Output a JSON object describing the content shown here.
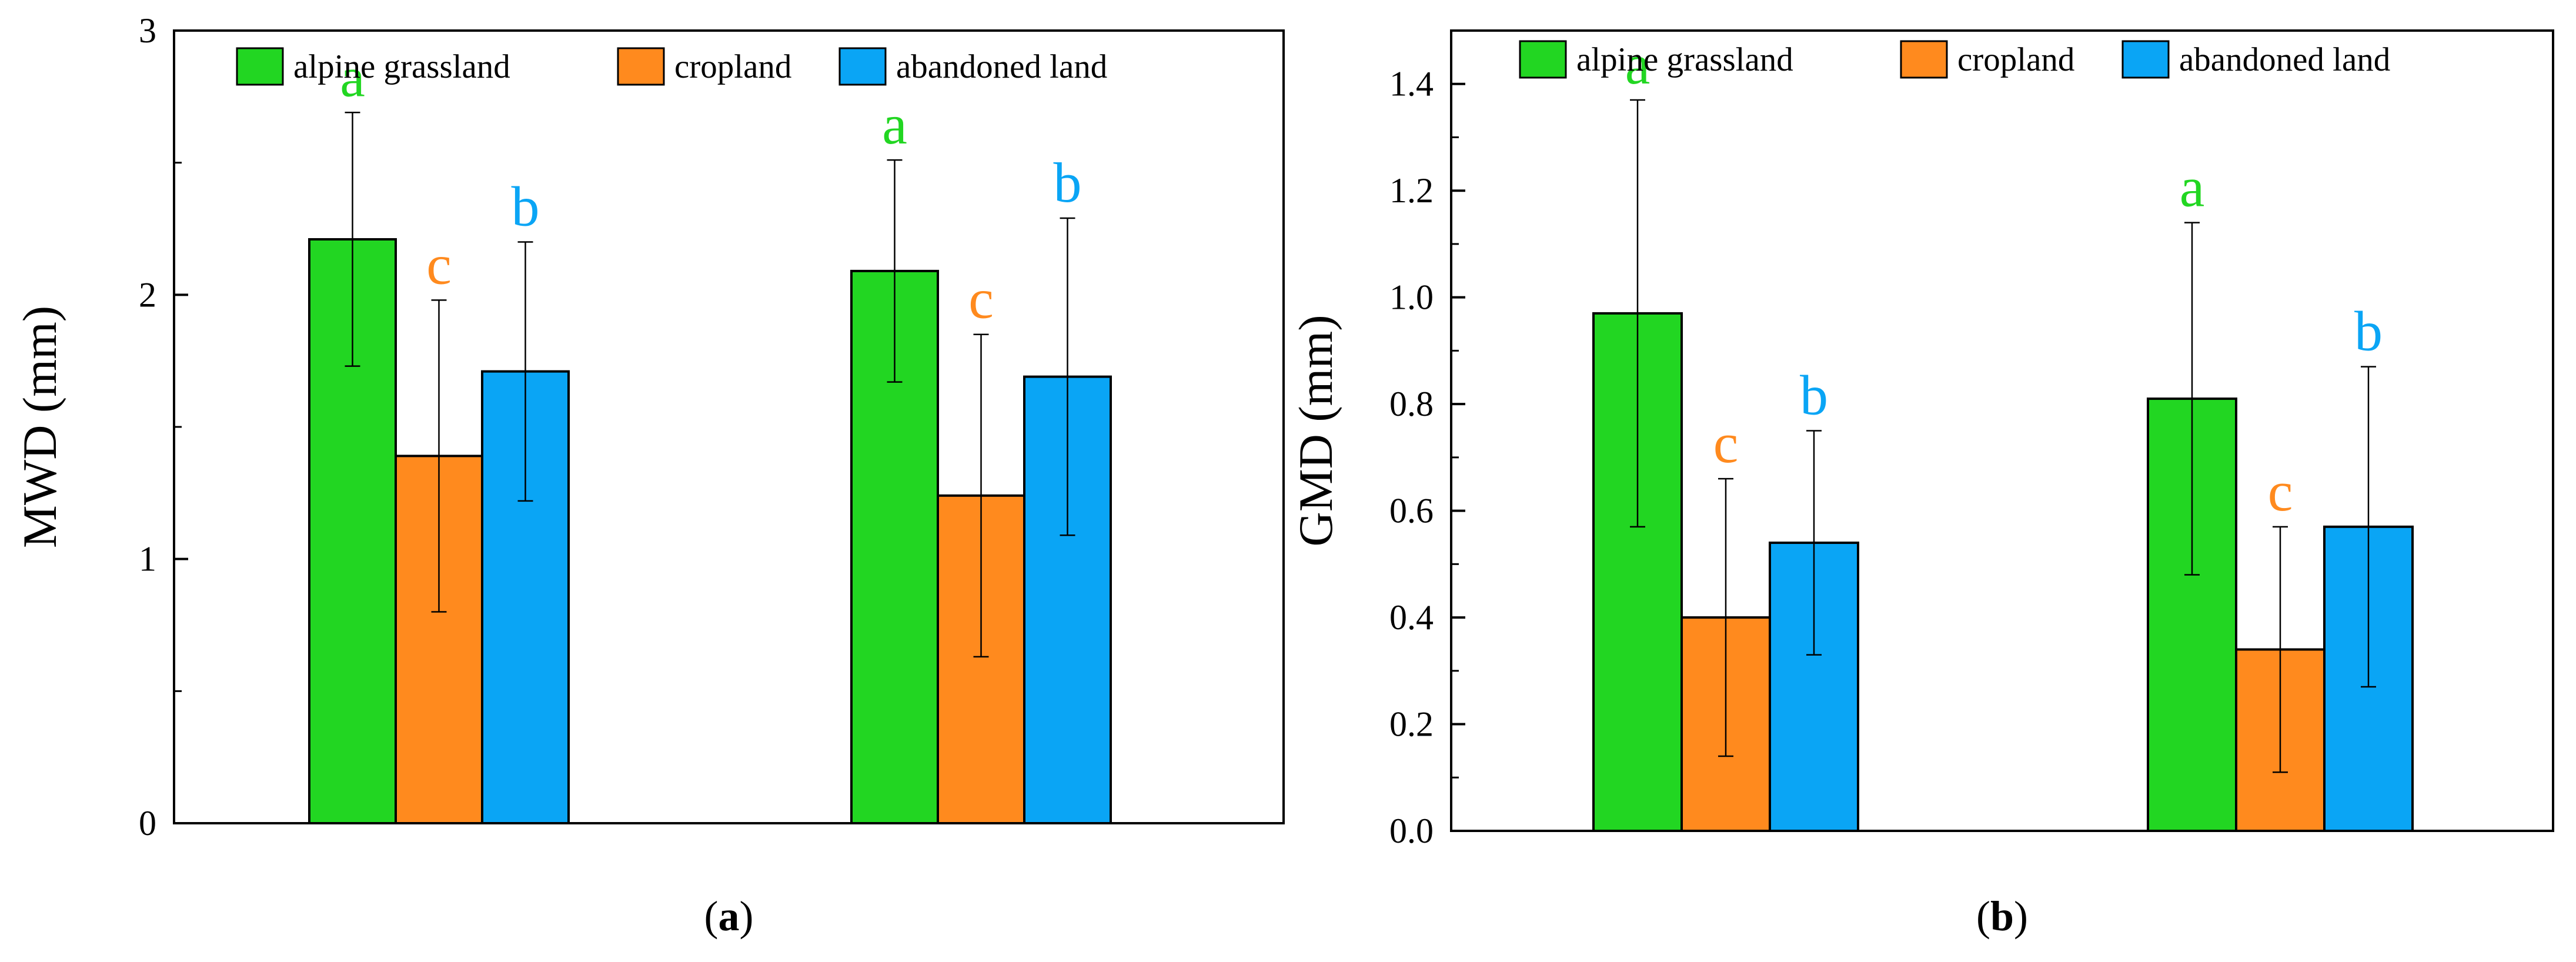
{
  "chart_data": [
    {
      "type": "bar",
      "panel_label": "a",
      "ylabel": "MWD (mm)",
      "xlabel": "",
      "ylim": [
        0,
        3
      ],
      "yticks": [
        0,
        1,
        2,
        3
      ],
      "ytick_labels": [
        "0",
        "1",
        "2",
        "3"
      ],
      "y_minor_step": 0.5,
      "categories": [
        "",
        ""
      ],
      "legend_position": "top",
      "series": [
        {
          "name": "alpine grassland",
          "color": "#22d622",
          "values": [
            2.21,
            2.09
          ],
          "errors": [
            0.48,
            0.42
          ],
          "letters": [
            "a",
            "a"
          ],
          "letter_color": "#22d622"
        },
        {
          "name": "cropland",
          "color": "#ff8a1e",
          "values": [
            1.39,
            1.24
          ],
          "errors": [
            0.59,
            0.61
          ],
          "letters": [
            "c",
            "c"
          ],
          "letter_color": "#ff8a1e"
        },
        {
          "name": "abandoned land",
          "color": "#0aa5f5",
          "values": [
            1.71,
            1.69
          ],
          "errors": [
            0.49,
            0.6
          ],
          "letters": [
            "b",
            "b"
          ],
          "letter_color": "#0aa5f5"
        }
      ]
    },
    {
      "type": "bar",
      "panel_label": "b",
      "ylabel": "GMD (mm)",
      "xlabel": "",
      "ylim": [
        0,
        1.5
      ],
      "yticks": [
        0,
        0.2,
        0.4,
        0.6,
        0.8,
        1.0,
        1.2,
        1.4
      ],
      "ytick_labels": [
        "0.0",
        "0.2",
        "0.4",
        "0.6",
        "0.8",
        "1.0",
        "1.2",
        "1.4"
      ],
      "y_minor_step": 0.1,
      "categories": [
        "",
        ""
      ],
      "legend_position": "top",
      "series": [
        {
          "name": "alpine grassland",
          "color": "#22d622",
          "values": [
            0.97,
            0.81
          ],
          "errors": [
            0.4,
            0.33
          ],
          "letters": [
            "a",
            "a"
          ],
          "letter_color": "#22d622"
        },
        {
          "name": "cropland",
          "color": "#ff8a1e",
          "values": [
            0.4,
            0.34
          ],
          "errors": [
            0.26,
            0.23
          ],
          "letters": [
            "c",
            "c"
          ],
          "letter_color": "#ff8a1e"
        },
        {
          "name": "abandoned land",
          "color": "#0aa5f5",
          "values": [
            0.54,
            0.57
          ],
          "errors": [
            0.21,
            0.3
          ],
          "letters": [
            "b",
            "b"
          ],
          "letter_color": "#0aa5f5"
        }
      ]
    }
  ]
}
